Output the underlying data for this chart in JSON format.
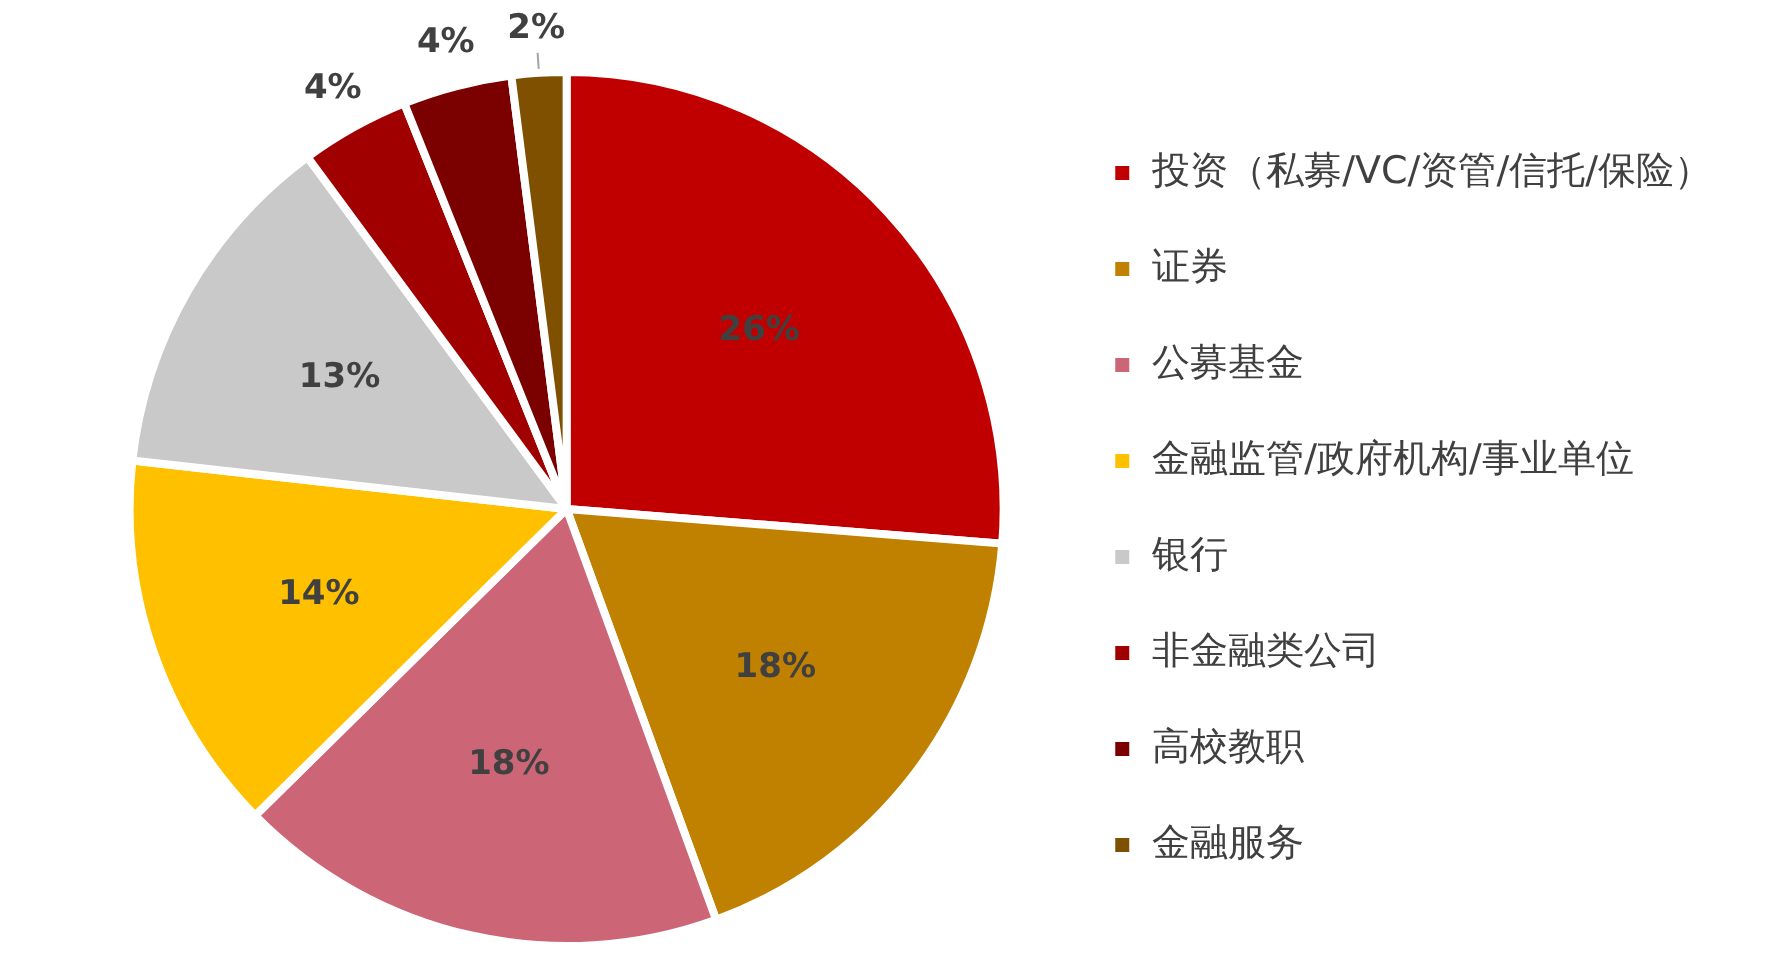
{
  "chart_data": {
    "type": "pie",
    "categories": [
      "投资（私募/VC/资管/信托/保险）",
      "证券",
      "公募基金",
      "金融监管/政府机构/事业单位",
      "银行",
      "非金融类公司",
      "高校教职",
      "金融服务"
    ],
    "values": [
      26,
      18,
      18,
      14,
      13,
      4,
      4,
      2
    ],
    "colors": [
      "#c00000",
      "#c08000",
      "#cc6677",
      "#ffc000",
      "#c9c9c9",
      "#a00000",
      "#7b0000",
      "#7f5000"
    ],
    "value_labels": [
      "26%",
      "18%",
      "18%",
      "14%",
      "13%",
      "4%",
      "4%",
      "2%"
    ],
    "legend": "right"
  }
}
